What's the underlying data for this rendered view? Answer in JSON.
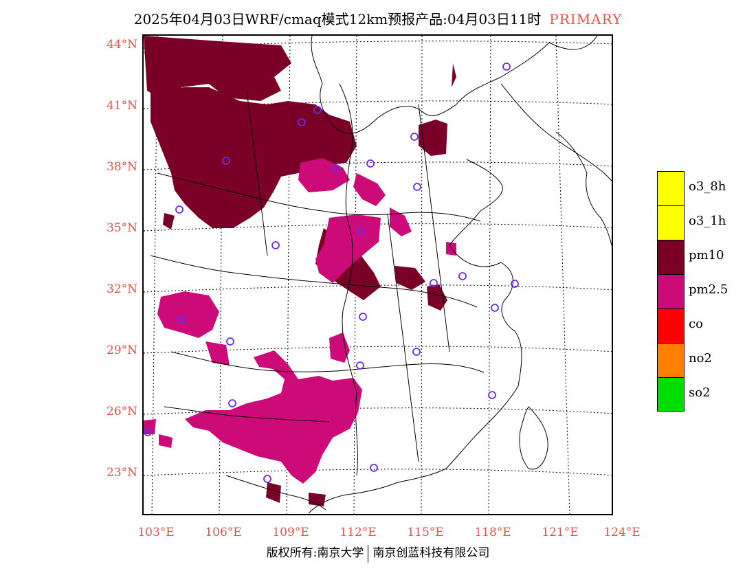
{
  "title": {
    "text": "2025年04月03日WRF/cmaq模式12km预报产品:04月03日11时",
    "tag": "PRIMARY"
  },
  "lat_labels": [
    "44°N",
    "41°N",
    "38°N",
    "35°N",
    "32°N",
    "29°N",
    "26°N",
    "23°N"
  ],
  "lon_labels": [
    "103°E",
    "106°E",
    "109°E",
    "112°E",
    "115°E",
    "118°E",
    "121°E",
    "124°E"
  ],
  "legend": [
    {
      "label": "o3_8h",
      "color": "#ffff00"
    },
    {
      "label": "o3_1h",
      "color": "#ffff00"
    },
    {
      "label": "pm10",
      "color": "#7a0028"
    },
    {
      "label": "pm2.5",
      "color": "#cc0a78"
    },
    {
      "label": "co",
      "color": "#ff0000"
    },
    {
      "label": "no2",
      "color": "#ff7f00"
    },
    {
      "label": "so2",
      "color": "#00dd00"
    }
  ],
  "footer": {
    "left": "版权所有:南京大学",
    "right": "南京创蓝科技有限公司"
  }
}
